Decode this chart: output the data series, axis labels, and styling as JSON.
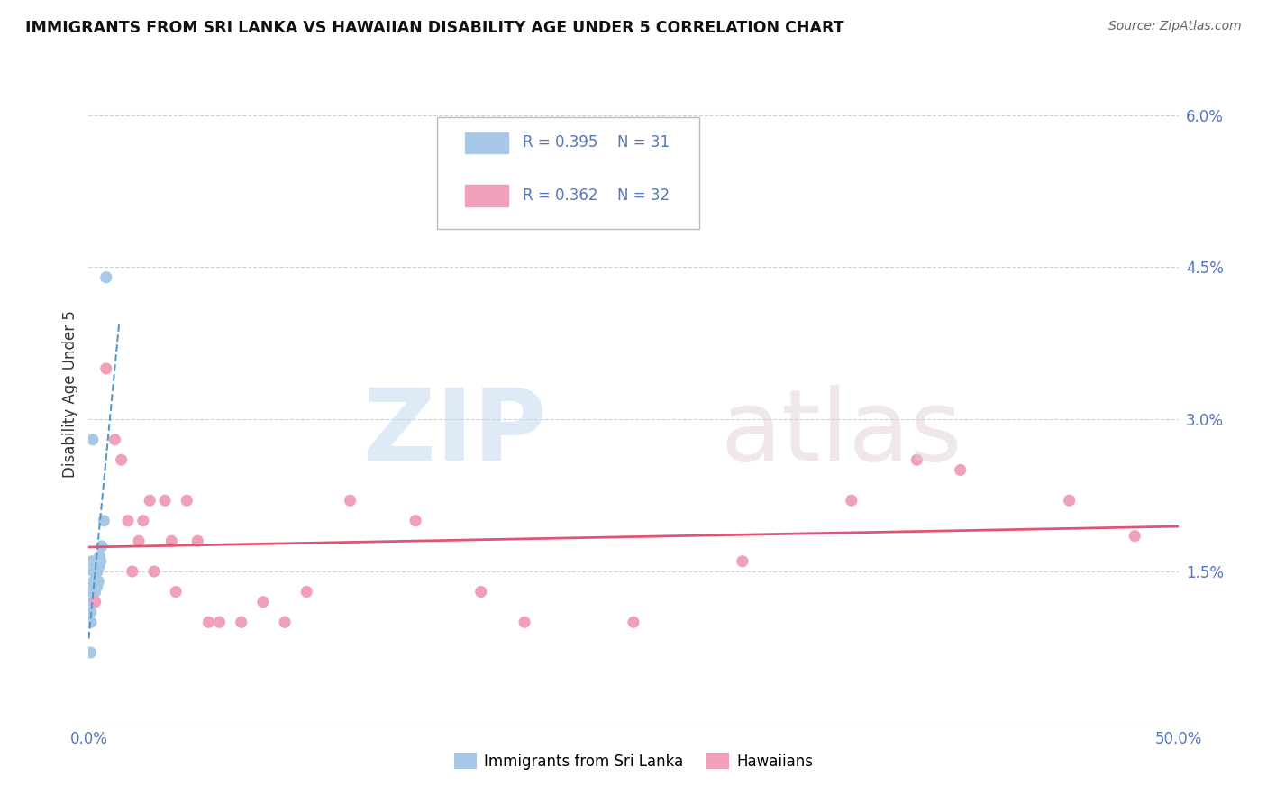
{
  "title": "IMMIGRANTS FROM SRI LANKA VS HAWAIIAN DISABILITY AGE UNDER 5 CORRELATION CHART",
  "source": "Source: ZipAtlas.com",
  "ylabel": "Disability Age Under 5",
  "xlim": [
    0.0,
    0.5
  ],
  "ylim": [
    0.0,
    0.065
  ],
  "yticks": [
    0.0,
    0.015,
    0.03,
    0.045,
    0.06
  ],
  "ytick_labels": [
    "",
    "1.5%",
    "3.0%",
    "4.5%",
    "6.0%"
  ],
  "xtick_labels": [
    "0.0%",
    "50.0%"
  ],
  "sri_lanka_color": "#a8c8e8",
  "hawaiians_color": "#f0a0b8",
  "sri_lanka_line_color": "#5599cc",
  "hawaiians_line_color": "#e05575",
  "legend_R_sri": "R = 0.395",
  "legend_N_sri": "N = 31",
  "legend_R_haw": "R = 0.362",
  "legend_N_haw": "N = 32",
  "legend_label_sri": "Immigrants from Sri Lanka",
  "legend_label_haw": "Hawaiians",
  "background_color": "#ffffff",
  "grid_color": "#cccccc",
  "tick_color": "#5577bb",
  "sri_lanka_x": [
    0.0008,
    0.001,
    0.001,
    0.0012,
    0.0015,
    0.0018,
    0.002,
    0.002,
    0.0022,
    0.0022,
    0.0025,
    0.0025,
    0.0025,
    0.0028,
    0.0028,
    0.0028,
    0.003,
    0.003,
    0.0032,
    0.0035,
    0.0035,
    0.0038,
    0.004,
    0.0042,
    0.0045,
    0.0048,
    0.005,
    0.0055,
    0.006,
    0.007,
    0.008
  ],
  "sri_lanka_y": [
    0.007,
    0.01,
    0.011,
    0.013,
    0.016,
    0.028,
    0.012,
    0.013,
    0.014,
    0.015,
    0.012,
    0.0135,
    0.015,
    0.013,
    0.014,
    0.0155,
    0.013,
    0.015,
    0.0155,
    0.014,
    0.016,
    0.0135,
    0.015,
    0.016,
    0.014,
    0.0155,
    0.0165,
    0.016,
    0.0175,
    0.02,
    0.044
  ],
  "hawaiians_x": [
    0.003,
    0.008,
    0.012,
    0.015,
    0.018,
    0.02,
    0.023,
    0.025,
    0.028,
    0.03,
    0.035,
    0.038,
    0.04,
    0.045,
    0.05,
    0.055,
    0.06,
    0.07,
    0.08,
    0.09,
    0.1,
    0.12,
    0.15,
    0.18,
    0.2,
    0.25,
    0.3,
    0.35,
    0.38,
    0.4,
    0.45,
    0.48
  ],
  "hawaiians_y": [
    0.012,
    0.035,
    0.028,
    0.026,
    0.02,
    0.015,
    0.018,
    0.02,
    0.022,
    0.015,
    0.022,
    0.018,
    0.013,
    0.022,
    0.018,
    0.01,
    0.01,
    0.01,
    0.012,
    0.01,
    0.013,
    0.022,
    0.02,
    0.013,
    0.01,
    0.01,
    0.016,
    0.022,
    0.026,
    0.025,
    0.022,
    0.0185
  ]
}
